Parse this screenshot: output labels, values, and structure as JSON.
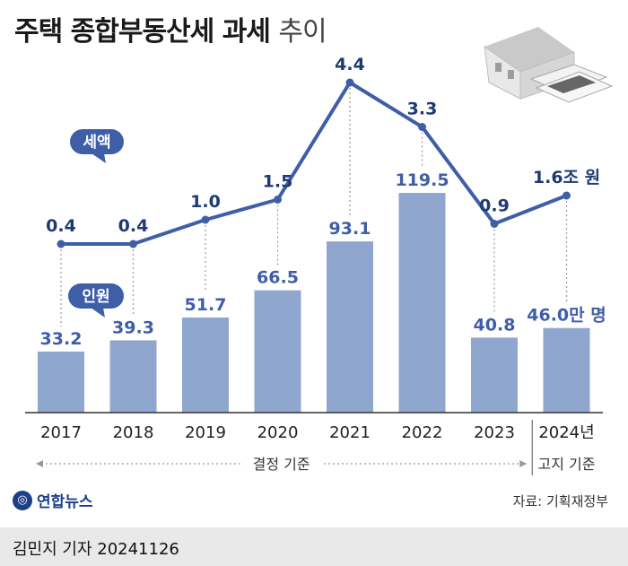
{
  "title": "주택 종합부동산세 과세",
  "title_suffix": "추이",
  "chart_data": {
    "type": "bar+line",
    "categories": [
      "2017",
      "2018",
      "2019",
      "2020",
      "2021",
      "2022",
      "2023",
      "2024년"
    ],
    "series": [
      {
        "name": "세액",
        "type": "line",
        "values": [
          0.4,
          0.4,
          1.0,
          1.5,
          4.4,
          3.3,
          0.9,
          1.6
        ],
        "color": "#3f5ea8"
      },
      {
        "name": "인원",
        "type": "bar",
        "values": [
          33.2,
          39.3,
          51.7,
          66.5,
          93.1,
          119.5,
          40.8,
          46.0
        ],
        "color": "#8fa6cf"
      }
    ],
    "line_labels": [
      "0.4",
      "0.4",
      "1.0",
      "1.5",
      "4.4",
      "3.3",
      "0.9",
      "1.6조 원"
    ],
    "bar_labels": [
      "33.2",
      "39.3",
      "51.7",
      "66.5",
      "93.1",
      "119.5",
      "40.8",
      "46.0만 명"
    ],
    "bar_label_color": "#3f5ea8",
    "line_label_color": "#1f3a73",
    "bubble_tax": "세액",
    "bubble_people": "인원",
    "range_label_settled": "결정 기준",
    "range_label_notice": "고지 기준"
  },
  "source": "자료: 기획재정부",
  "logo_text": "연합뉴스",
  "reporter": "김민지 기자  20241126"
}
